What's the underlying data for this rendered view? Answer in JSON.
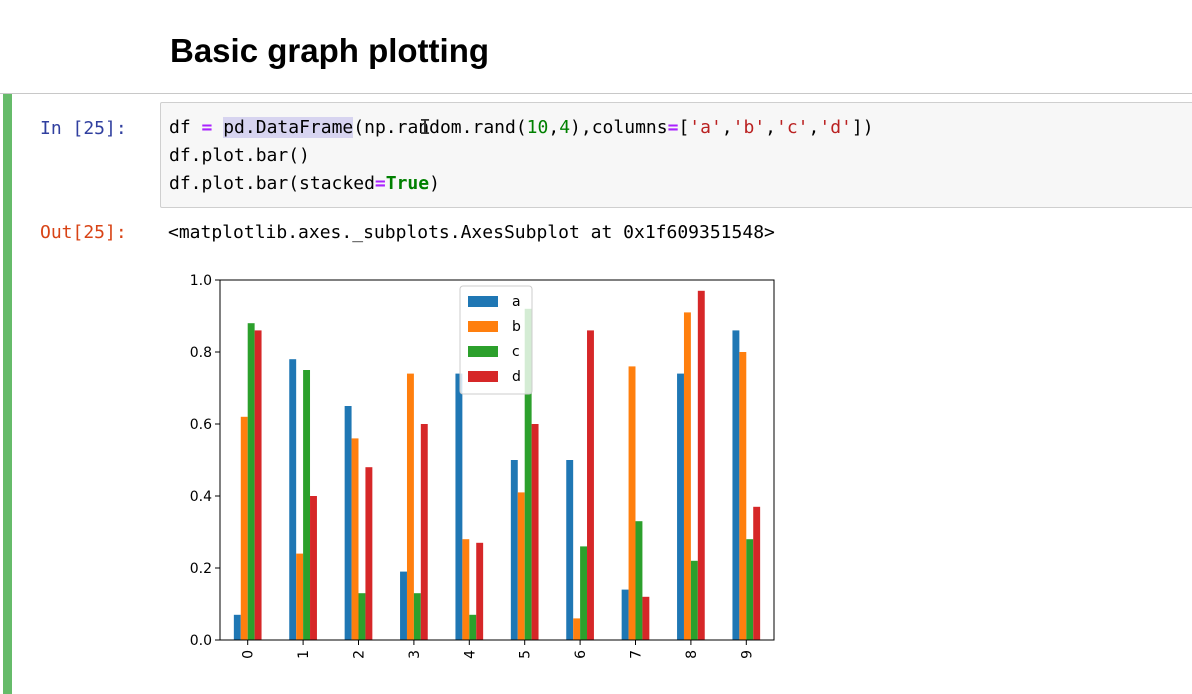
{
  "heading": "Basic graph plotting",
  "cell": {
    "in_prompt": "In [25]:",
    "out_prompt": "Out[25]:",
    "code": {
      "l1_var": "df",
      "l1_eq": "=",
      "l1_func": "pd.DataFrame",
      "l1_paren": "(",
      "l1_args_a": "np.random.rand(",
      "l1_n1": "10",
      "l1_comma": ",",
      "l1_n2": "4",
      "l1_args_b": "),columns",
      "l1_eq2": "=",
      "l1_br": "[",
      "l1_sa": "'a'",
      "l1_c1": ",",
      "l1_sb": "'b'",
      "l1_c2": ",",
      "l1_sc": "'c'",
      "l1_c3": ",",
      "l1_sd": "'d'",
      "l1_end": "])",
      "l2": "df.plot.bar()",
      "l3_a": "df.plot.bar(stacked",
      "l3_eq": "=",
      "l3_kw": "True",
      "l3_end": ")"
    },
    "output_text": "<matplotlib.axes._subplots.AxesSubplot at 0x1f609351548>"
  },
  "chart_data": {
    "type": "bar",
    "categories": [
      "0",
      "1",
      "2",
      "3",
      "4",
      "5",
      "6",
      "7",
      "8",
      "9"
    ],
    "series": [
      {
        "name": "a",
        "color": "#1f77b4",
        "values": [
          0.07,
          0.78,
          0.65,
          0.19,
          0.74,
          0.5,
          0.5,
          0.14,
          0.74,
          0.86
        ]
      },
      {
        "name": "b",
        "color": "#ff7f0e",
        "values": [
          0.62,
          0.24,
          0.56,
          0.74,
          0.28,
          0.41,
          0.06,
          0.76,
          0.91,
          0.8
        ]
      },
      {
        "name": "c",
        "color": "#2ca02c",
        "values": [
          0.88,
          0.75,
          0.13,
          0.13,
          0.07,
          0.92,
          0.26,
          0.33,
          0.22,
          0.28
        ]
      },
      {
        "name": "d",
        "color": "#d62728",
        "values": [
          0.86,
          0.4,
          0.48,
          0.6,
          0.27,
          0.6,
          0.86,
          0.12,
          0.97,
          0.37
        ]
      }
    ],
    "yticks": [
      "0.0",
      "0.2",
      "0.4",
      "0.6",
      "0.8",
      "1.0"
    ],
    "ylim": [
      0,
      1.0
    ],
    "legend_position": "upper center",
    "grid": false
  }
}
